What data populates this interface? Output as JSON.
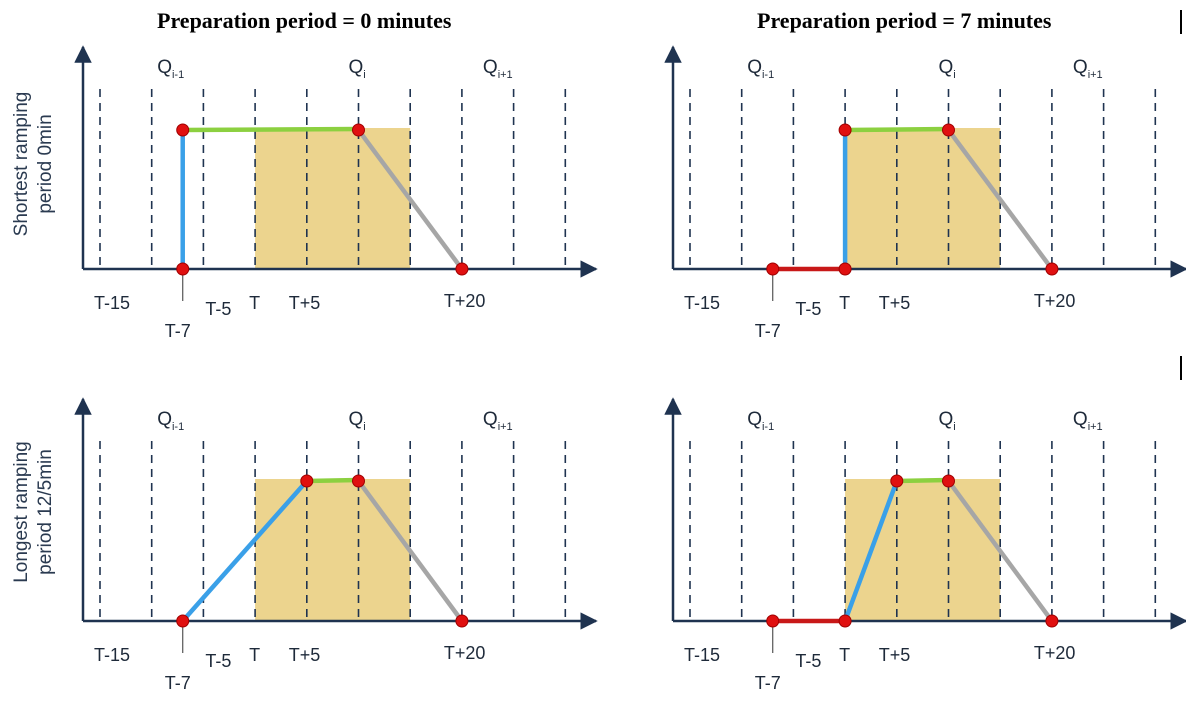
{
  "titles": {
    "left": "Preparation period = 0 minutes",
    "right": "Preparation period = 7 minutes"
  },
  "row_labels": {
    "top": [
      "Shortest ramping",
      "period 0min"
    ],
    "bottom": [
      "Longest ramping",
      "period 12/5min"
    ]
  },
  "axis": {
    "tick_labels": [
      "T-15",
      "T-7",
      "T-5",
      "T",
      "T+5",
      "T+20"
    ],
    "quarter_labels": [
      {
        "base": "Q",
        "sub": "i-1"
      },
      {
        "base": "Q",
        "sub": "i"
      },
      {
        "base": "Q",
        "sub": "i+1"
      }
    ]
  },
  "colors": {
    "axis": "#1f3350",
    "dashed": "#1f3350",
    "shaded_block": "#ecd48e",
    "ramp_up": "#3aa0e8",
    "plateau": "#8cd040",
    "ramp_down": "#a6a6a6",
    "preparation": "#c81818",
    "point": "#e01010",
    "point_stroke": "#a00000"
  },
  "panels": [
    {
      "id": "shortest-prep-0",
      "prep_start": -7,
      "ramp_start": -7,
      "ramp_end": -7,
      "plateau_end": 10,
      "down_end": 20
    },
    {
      "id": "shortest-prep-7",
      "prep_start": -7,
      "ramp_start": 0,
      "ramp_end": 0,
      "plateau_end": 10,
      "down_end": 20
    },
    {
      "id": "longest-prep-0",
      "prep_start": -7,
      "ramp_start": -7,
      "ramp_end": 5,
      "plateau_end": 10,
      "down_end": 20
    },
    {
      "id": "longest-prep-7",
      "prep_start": -7,
      "ramp_start": 0,
      "ramp_end": 5,
      "plateau_end": 10,
      "down_end": 20
    }
  ]
}
